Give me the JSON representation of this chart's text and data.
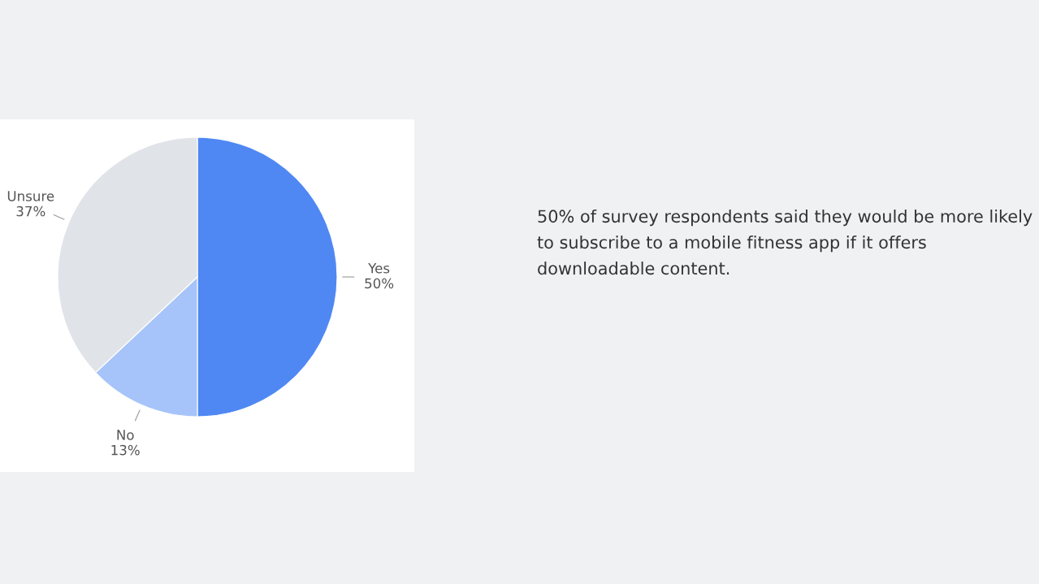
{
  "chart_data": {
    "type": "pie",
    "categories": [
      "Yes",
      "No",
      "Unsure"
    ],
    "values": [
      50,
      13,
      37
    ],
    "value_labels": [
      "50%",
      "13%",
      "37%"
    ],
    "colors": [
      "#4f88f3",
      "#a6c4f9",
      "#e0e3e8"
    ],
    "annotations": [
      "50% of survey respondents said they would be more likely to subscribe to a mobile fitness app if it offers downloadable content."
    ]
  }
}
